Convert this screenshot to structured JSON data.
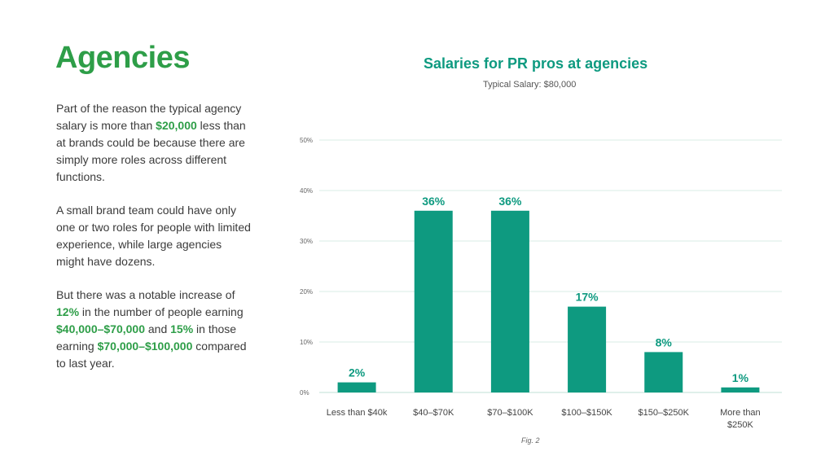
{
  "page": {
    "title": "Agencies",
    "fig_caption": "Fig. 2"
  },
  "body": {
    "p1": {
      "a": "Part of the reason the typical agency salary is more than ",
      "b": "$20,000",
      "c": " less than at brands could be because there are simply more roles across different functions."
    },
    "p2": "A small brand team could have only one or two roles for people with limited experience, while large agencies might have dozens.",
    "p3": {
      "a": "But there was a notable increase of ",
      "b": "12%",
      "c": " in the number of people earning ",
      "d": "$40,000–$70,000",
      "e": " and ",
      "f": "15%",
      "g": " in those earning ",
      "h": "$70,000–$100,000",
      "i": " compared to last year."
    }
  },
  "colors": {
    "bar": "#0e9a80",
    "accent": "#2e9e48",
    "grid": "#d9ede6"
  },
  "chart_data": {
    "type": "bar",
    "title": "Salaries for PR pros at agencies",
    "subtitle": "Typical Salary: $80,000",
    "categories": [
      "Less than $40k",
      "$40–$70K",
      "$70–$100K",
      "$100–$150K",
      "$150–$250K",
      "More than $250K"
    ],
    "values": [
      2,
      36,
      36,
      17,
      8,
      1
    ],
    "data_labels": [
      "2%",
      "36%",
      "36%",
      "17%",
      "8%",
      "1%"
    ],
    "yticks": [
      0,
      10,
      20,
      30,
      40,
      50
    ],
    "ytick_labels": [
      "0%",
      "10%",
      "20%",
      "30%",
      "40%",
      "50%"
    ],
    "ylim": [
      0,
      50
    ],
    "xlabel": "",
    "ylabel": "",
    "grid": true
  }
}
